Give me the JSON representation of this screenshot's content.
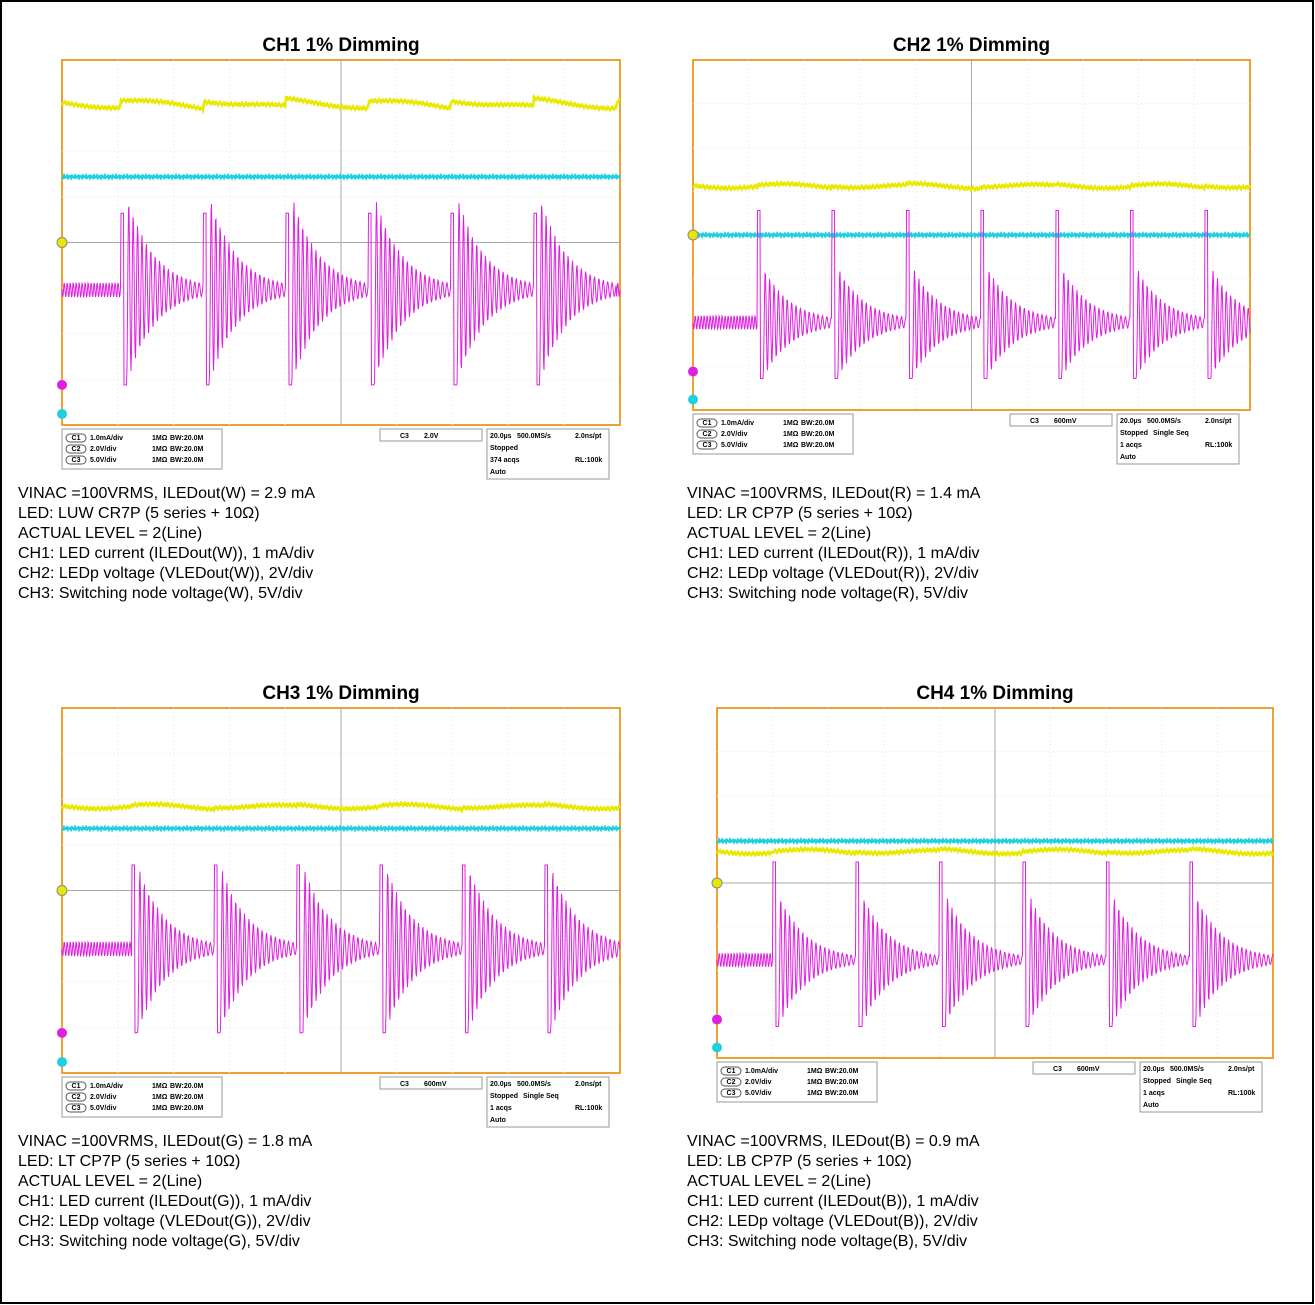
{
  "panels": [
    {
      "title": "CH1 1% Dimming",
      "scales": [
        {
          "ch": "C1",
          "div": "1.0mA/div",
          "imp": "1MΩ",
          "bw": "BW:20.0M"
        },
        {
          "ch": "C2",
          "div": "2.0V/div",
          "imp": "1MΩ",
          "bw": "BW:20.0M"
        },
        {
          "ch": "C3",
          "div": "5.0V/div",
          "imp": "1MΩ",
          "bw": "BW:20.0M"
        }
      ],
      "trigger": {
        "source": "C3",
        "level": "2.0V"
      },
      "acq": {
        "time": "20.0µs",
        "rate": "500.0MS/s",
        "res": "2.0ns/pt",
        "state": "Stopped",
        "count": "374 acqs",
        "rl": "RL:100k",
        "trig": "Auto"
      },
      "notes": [
        "VINAC =100VRMS, ILEDout(W) = 2.9 mA",
        "LED: LUW CR7P (5 series + 10Ω)",
        "ACTUAL LEVEL = 2(Line)",
        "CH1: LED current (ILEDout(W)), 1 mA/div",
        "CH2: LEDp voltage (VLEDout(W)), 2V/div",
        "CH3: Switching node voltage(W), 5V/div"
      ]
    },
    {
      "title": "CH2 1% Dimming",
      "scales": [
        {
          "ch": "C1",
          "div": "1.0mA/div",
          "imp": "1MΩ",
          "bw": "BW:20.0M"
        },
        {
          "ch": "C2",
          "div": "2.0V/div",
          "imp": "1MΩ",
          "bw": "BW:20.0M"
        },
        {
          "ch": "C3",
          "div": "5.0V/div",
          "imp": "1MΩ",
          "bw": "BW:20.0M"
        }
      ],
      "trigger": {
        "source": "C3",
        "level": "600mV"
      },
      "acq": {
        "time": "20.0µs",
        "rate": "500.0MS/s",
        "res": "2.0ns/pt",
        "state": "Stopped",
        "mode": "Single Seq",
        "count": "1 acqs",
        "rl": "RL:100k",
        "trig": "Auto"
      },
      "notes": [
        "VINAC =100VRMS, ILEDout(R) = 1.4 mA",
        "LED: LR CP7P (5 series + 10Ω)",
        "ACTUAL LEVEL = 2(Line)",
        "CH1: LED current (ILEDout(R)), 1 mA/div",
        "CH2: LEDp voltage (VLEDout(R)), 2V/div",
        "CH3: Switching node voltage(R), 5V/div"
      ]
    },
    {
      "title": "CH3 1% Dimming",
      "scales": [
        {
          "ch": "C1",
          "div": "1.0mA/div",
          "imp": "1MΩ",
          "bw": "BW:20.0M"
        },
        {
          "ch": "C2",
          "div": "2.0V/div",
          "imp": "1MΩ",
          "bw": "BW:20.0M"
        },
        {
          "ch": "C3",
          "div": "5.0V/div",
          "imp": "1MΩ",
          "bw": "BW:20.0M"
        }
      ],
      "trigger": {
        "source": "C3",
        "level": "600mV"
      },
      "acq": {
        "time": "20.0µs",
        "rate": "500.0MS/s",
        "res": "2.0ns/pt",
        "state": "Stopped",
        "mode": "Single Seq",
        "count": "1 acqs",
        "rl": "RL:100k",
        "trig": "Auto"
      },
      "notes": [
        "VINAC =100VRMS, ILEDout(G) = 1.8 mA",
        "LED: LT CP7P (5 series + 10Ω)",
        "ACTUAL LEVEL = 2(Line)",
        "CH1: LED current (ILEDout(G)), 1 mA/div",
        "CH2: LEDp voltage (VLEDout(G)), 2V/div",
        "CH3: Switching node voltage(G), 5V/div"
      ]
    },
    {
      "title": "CH4 1% Dimming",
      "scales": [
        {
          "ch": "C1",
          "div": "1.0mA/div",
          "imp": "1MΩ",
          "bw": "BW:20.0M"
        },
        {
          "ch": "C2",
          "div": "2.0V/div",
          "imp": "1MΩ",
          "bw": "BW:20.0M"
        },
        {
          "ch": "C3",
          "div": "5.0V/div",
          "imp": "1MΩ",
          "bw": "BW:20.0M"
        }
      ],
      "trigger": {
        "source": "C3",
        "level": "600mV"
      },
      "acq": {
        "time": "20.0µs",
        "rate": "500.0MS/s",
        "res": "2.0ns/pt",
        "state": "Stopped",
        "mode": "Single Seq",
        "count": "1 acqs",
        "rl": "RL:100k",
        "trig": "Auto"
      },
      "notes": [
        "VINAC =100VRMS, ILEDout(B) = 0.9 mA",
        "LED: LB CP7P (5 series + 10Ω)",
        "ACTUAL LEVEL = 2(Line)",
        "CH1: LED current (ILEDout(B)), 1 mA/div",
        "CH2: LEDp voltage (VLEDout(B)), 2V/div",
        "CH3: Switching node voltage(B), 5V/div"
      ]
    }
  ]
}
